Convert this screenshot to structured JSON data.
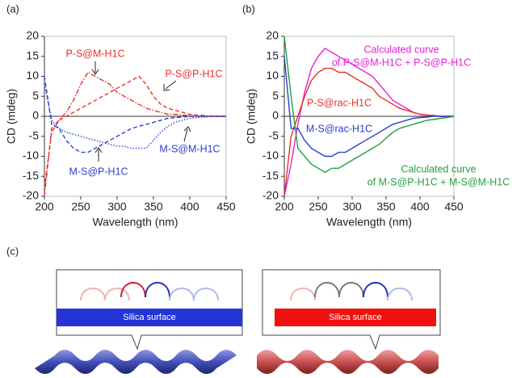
{
  "chart_data": [
    {
      "type": "line",
      "panel": "(a)",
      "x_label": "Wavelength (nm)",
      "y_label": "CD (mdeg)",
      "xlim": [
        200,
        450
      ],
      "xticks": [
        200,
        250,
        300,
        350,
        400,
        450
      ],
      "ylim": [
        -20,
        20
      ],
      "yticks": [
        -20,
        -15,
        -10,
        -5,
        0,
        5,
        10,
        15,
        20
      ],
      "x": [
        200,
        210,
        220,
        230,
        240,
        250,
        260,
        270,
        280,
        290,
        300,
        310,
        320,
        330,
        340,
        350,
        360,
        370,
        380,
        390,
        400,
        410,
        420,
        430,
        440,
        450
      ],
      "series": [
        {
          "name": "P-S@M-H1C",
          "color": "#e8302a",
          "dash": "dashdot",
          "values": [
            -20,
            -3,
            -1,
            1,
            4,
            8,
            11,
            10,
            9,
            8,
            6,
            5,
            4,
            3,
            2,
            1.5,
            1,
            0.5,
            0.5,
            0.3,
            0.2,
            0,
            0,
            0,
            0,
            0
          ]
        },
        {
          "name": "P-S@P-H1C",
          "color": "#e8302a",
          "dash": "dashed",
          "values": [
            -18,
            -4,
            -1,
            0,
            1,
            2,
            3,
            4,
            5,
            6,
            7,
            8,
            9,
            10,
            8,
            5,
            3,
            2,
            1.5,
            1,
            0.5,
            0.3,
            0.2,
            0,
            0,
            0
          ]
        },
        {
          "name": "M-S@M-H1C",
          "color": "#2b3fd0",
          "dash": "dotted",
          "values": [
            8,
            -1,
            -3,
            -4,
            -4.5,
            -5,
            -5.5,
            -6,
            -6.5,
            -7,
            -7.5,
            -7.5,
            -8,
            -8,
            -8,
            -6,
            -4,
            -2.5,
            -1.5,
            -1,
            -0.5,
            -0.3,
            -0.2,
            0,
            0,
            0
          ]
        },
        {
          "name": "M-S@P-H1C",
          "color": "#2b3fd0",
          "dash": "dashed",
          "values": [
            10,
            -2,
            -3,
            -6,
            -8,
            -9,
            -9,
            -8,
            -7,
            -6,
            -5,
            -4,
            -3,
            -2.5,
            -2,
            -1.5,
            -1,
            -0.5,
            -0.3,
            -0.2,
            0,
            0,
            0,
            0,
            0,
            0
          ]
        }
      ]
    },
    {
      "type": "line",
      "panel": "(b)",
      "x_label": "Wavelength (nm)",
      "y_label": "CD (mdeg)",
      "xlim": [
        200,
        450
      ],
      "xticks": [
        200,
        250,
        300,
        350,
        400,
        450
      ],
      "ylim": [
        -20,
        20
      ],
      "yticks": [
        -20,
        -15,
        -10,
        -5,
        0,
        5,
        10,
        15,
        20
      ],
      "x": [
        200,
        210,
        220,
        230,
        240,
        250,
        260,
        270,
        280,
        290,
        300,
        310,
        320,
        330,
        340,
        350,
        360,
        370,
        380,
        390,
        400,
        410,
        420,
        430,
        440,
        450
      ],
      "series": [
        {
          "name": [
            "Calculated curve",
            "of P-S@M-H1C + P-S@P-H1C"
          ],
          "color": "#e81fd8",
          "dash": "solid",
          "values": [
            -20,
            -12,
            -2,
            6,
            12,
            15,
            17,
            16,
            15,
            14,
            13,
            12,
            11,
            10,
            8,
            6,
            4,
            3,
            2,
            1,
            0.5,
            0.3,
            0.2,
            0,
            0,
            0
          ]
        },
        {
          "name": "P-S@rac-H1C",
          "color": "#e8302a",
          "dash": "solid",
          "values": [
            -20,
            -5,
            0,
            5,
            9,
            11,
            12,
            12,
            11,
            11,
            10,
            9,
            8,
            7,
            5,
            4,
            3,
            2,
            1.5,
            1,
            0.5,
            0.3,
            0.2,
            0,
            0,
            0
          ]
        },
        {
          "name": "M-S@rac-H1C",
          "color": "#2b3fd0",
          "dash": "solid",
          "values": [
            15,
            -3,
            -3,
            -6,
            -8,
            -9,
            -10,
            -10,
            -9,
            -9,
            -8,
            -7,
            -6,
            -5,
            -4,
            -3,
            -2,
            -1.5,
            -1,
            -0.5,
            -0.3,
            -0.2,
            0,
            0,
            0,
            0
          ]
        },
        {
          "name": [
            "Calculated curve",
            "of M-S@P-H1C + M-S@M-H1C"
          ],
          "color": "#20a040",
          "dash": "solid",
          "values": [
            20,
            5,
            -8,
            -10,
            -12,
            -13,
            -14,
            -13,
            -13,
            -12,
            -11,
            -10,
            -9,
            -8,
            -7,
            -5.5,
            -4,
            -3,
            -2.5,
            -2,
            -1.5,
            -1,
            -0.8,
            -0.5,
            -0.3,
            0
          ]
        }
      ]
    }
  ],
  "panel_c": {
    "label": "(c)",
    "surfaces": [
      "Silica surface",
      "Silica surface"
    ]
  }
}
